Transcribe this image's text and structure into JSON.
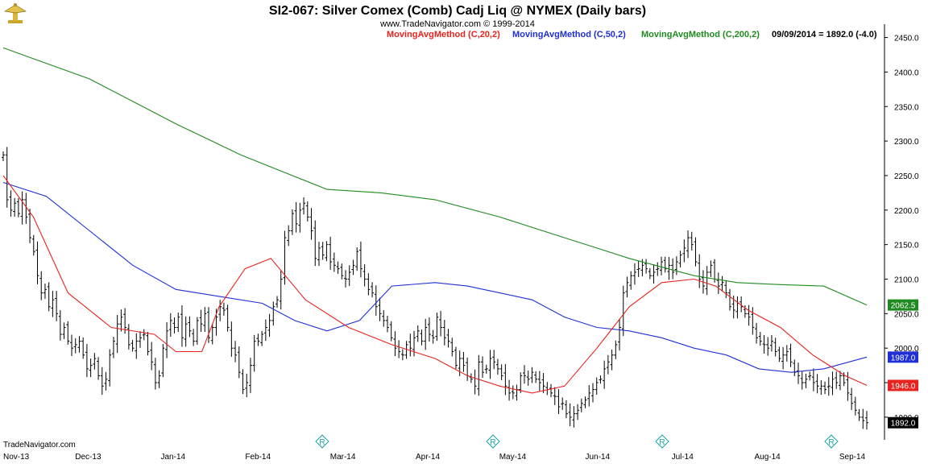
{
  "header": {
    "title": "SI2-067:  Silver Comex (Comb) Cadj Liq @ NYMEX  (Daily bars)",
    "copyright": "www.TradeNavigator.com © 1999-2014",
    "legend": [
      {
        "label": "MovingAvgMethod (C,20,2)",
        "color": "#e8231e"
      },
      {
        "label": "MovingAvgMethod (C,50,2)",
        "color": "#1f2fd6"
      },
      {
        "label": "MovingAvgMethod (C,200,2)",
        "color": "#1f8a1f"
      }
    ],
    "last_value": "09/09/2014 = 1892.0 (-4.0)"
  },
  "footer": {
    "brand": "TradeNavigator.com"
  },
  "logo": {
    "icon": "trophy-icon"
  },
  "colors": {
    "bars": "#000000",
    "ma20": "#e8231e",
    "ma50": "#1f2fd6",
    "ma200": "#1f8a1f",
    "marker": "#19a3a3"
  },
  "chart_data": {
    "type": "ohlc-bar",
    "y_axis": {
      "side": "right",
      "min": 1880,
      "max": 2460,
      "ticks": [
        "2450.0",
        "2400.0",
        "2350.0",
        "2300.0",
        "2250.0",
        "2200.0",
        "2150.0",
        "2100.0",
        "2050.0",
        "2000.0",
        "1950.0",
        "1900.0"
      ]
    },
    "x_axis": {
      "labels": [
        "Nov-13",
        "Dec-13",
        "Jan-14",
        "Feb-14",
        "Mar-14",
        "Apr-14",
        "May-14",
        "Jun-14",
        "Jul-14",
        "Aug-14",
        "Sep-14"
      ]
    },
    "value_badges": [
      {
        "value": 2062.5,
        "text": "2062.5",
        "color": "#1f8a1f"
      },
      {
        "value": 1987.0,
        "text": "1987.0",
        "color": "#1f2fd6"
      },
      {
        "value": 1946.0,
        "text": "1946.0",
        "color": "#e8231e"
      },
      {
        "value": 1892.0,
        "text": "1892.0",
        "color": "#000000"
      }
    ],
    "event_markers": {
      "symbol": "R",
      "count": 4
    },
    "bars_approx": {
      "note": "approximate daily closes read from chart",
      "closes": [
        2280,
        2215,
        2200,
        2210,
        2195,
        2215,
        2190,
        2160,
        2140,
        2105,
        2080,
        2085,
        2060,
        2070,
        2050,
        2020,
        2030,
        2010,
        2000,
        2005,
        2010,
        1990,
        1970,
        1975,
        1985,
        1960,
        1945,
        1955,
        1990,
        2010,
        2035,
        2045,
        2030,
        2005,
        2000,
        2010,
        2015,
        2020,
        1995,
        1980,
        1950,
        1960,
        2000,
        2025,
        2040,
        2030,
        2045,
        2015,
        2035,
        2025,
        2010,
        2040,
        2035,
        2050,
        2015,
        2030,
        2045,
        2060,
        2055,
        2030,
        2000,
        1990,
        1965,
        1940,
        1950,
        1975,
        2010,
        2010,
        2020,
        2030,
        2040,
        2060,
        2070,
        2100,
        2160,
        2170,
        2195,
        2180,
        2200,
        2210,
        2190,
        2170,
        2130,
        2145,
        2135,
        2150,
        2125,
        2120,
        2115,
        2105,
        2100,
        2110,
        2120,
        2140,
        2115,
        2100,
        2085,
        2080,
        2060,
        2050,
        2040,
        2030,
        2015,
        2000,
        1995,
        1990,
        2005,
        2000,
        2015,
        2025,
        2010,
        2030,
        2020,
        2015,
        2045,
        2030,
        2015,
        2010,
        1995,
        1975,
        1985,
        1975,
        1960,
        1955,
        1945,
        1980,
        1965,
        1970,
        1985,
        1980,
        1970,
        1960,
        1945,
        1935,
        1935,
        1940,
        1960,
        1960,
        1955,
        1965,
        1955,
        1950,
        1945,
        1940,
        1935,
        1930,
        1915,
        1920,
        1905,
        1900,
        1905,
        1910,
        1920,
        1925,
        1935,
        1940,
        1950,
        1955,
        1970,
        1980,
        1990,
        2005,
        2030,
        2080,
        2095,
        2105,
        2110,
        2115,
        2120,
        2115,
        2105,
        2110,
        2115,
        2125,
        2115,
        2120,
        2110,
        2125,
        2135,
        2145,
        2160,
        2150,
        2125,
        2100,
        2090,
        2110,
        2120,
        2100,
        2090,
        2095,
        2080,
        2060,
        2055,
        2065,
        2060,
        2050,
        2045,
        2030,
        2015,
        2010,
        2005,
        2000,
        2010,
        1995,
        1985,
        1990,
        1995,
        1980,
        1965,
        1960,
        1950,
        1955,
        1960,
        1950,
        1945,
        1945,
        1940,
        1945,
        1955,
        1950,
        1960,
        1950,
        1935,
        1920,
        1910,
        1900,
        1895,
        1892
      ]
    },
    "ma20_points": [
      [
        0,
        2250
      ],
      [
        14,
        2190
      ],
      [
        30,
        2080
      ],
      [
        50,
        2030
      ],
      [
        70,
        2020
      ],
      [
        80,
        1995
      ],
      [
        92,
        1995
      ],
      [
        100,
        2060
      ],
      [
        112,
        2115
      ],
      [
        124,
        2130
      ],
      [
        140,
        2070
      ],
      [
        160,
        2030
      ],
      [
        180,
        2005
      ],
      [
        200,
        1985
      ],
      [
        215,
        1960
      ],
      [
        230,
        1945
      ],
      [
        245,
        1935
      ],
      [
        260,
        1945
      ],
      [
        275,
        2000
      ],
      [
        290,
        2060
      ],
      [
        305,
        2095
      ],
      [
        320,
        2100
      ],
      [
        330,
        2090
      ],
      [
        345,
        2055
      ],
      [
        360,
        2030
      ],
      [
        375,
        1990
      ],
      [
        390,
        1960
      ],
      [
        400,
        1946
      ]
    ],
    "ma50_points": [
      [
        0,
        2240
      ],
      [
        20,
        2220
      ],
      [
        40,
        2170
      ],
      [
        60,
        2120
      ],
      [
        80,
        2085
      ],
      [
        100,
        2075
      ],
      [
        120,
        2065
      ],
      [
        135,
        2040
      ],
      [
        150,
        2025
      ],
      [
        165,
        2040
      ],
      [
        180,
        2090
      ],
      [
        200,
        2095
      ],
      [
        215,
        2090
      ],
      [
        230,
        2080
      ],
      [
        245,
        2070
      ],
      [
        260,
        2045
      ],
      [
        275,
        2030
      ],
      [
        290,
        2025
      ],
      [
        305,
        2015
      ],
      [
        320,
        2000
      ],
      [
        335,
        1990
      ],
      [
        350,
        1970
      ],
      [
        365,
        1965
      ],
      [
        380,
        1970
      ],
      [
        400,
        1987
      ]
    ],
    "ma200_points": [
      [
        0,
        2435
      ],
      [
        40,
        2390
      ],
      [
        80,
        2325
      ],
      [
        110,
        2280
      ],
      [
        130,
        2255
      ],
      [
        150,
        2230
      ],
      [
        175,
        2225
      ],
      [
        200,
        2215
      ],
      [
        230,
        2190
      ],
      [
        260,
        2160
      ],
      [
        290,
        2130
      ],
      [
        320,
        2105
      ],
      [
        340,
        2095
      ],
      [
        360,
        2092
      ],
      [
        380,
        2090
      ],
      [
        400,
        2062.5
      ]
    ]
  }
}
